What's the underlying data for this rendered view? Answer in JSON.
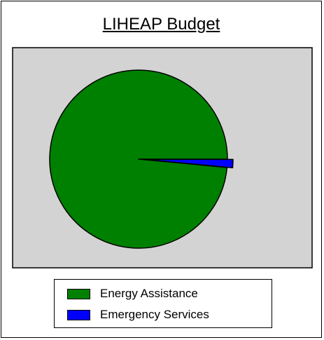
{
  "chart_data": {
    "type": "pie",
    "title": "LIHEAP Budget",
    "labels": [
      "Energy Assistance",
      "Emergency Services"
    ],
    "values": [
      98.5,
      1.5
    ],
    "colors": [
      "#008000",
      "#0000ff"
    ],
    "exploded": [
      "Emergency Services"
    ],
    "plot_background": "#d3d3d3",
    "legend_position": "bottom",
    "start_angle_deg": 0,
    "direction": "counterclockwise"
  }
}
